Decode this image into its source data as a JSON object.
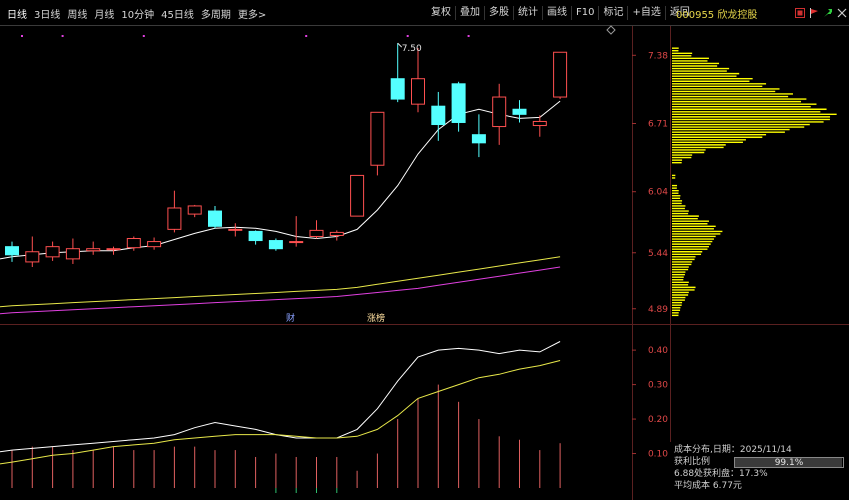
{
  "toolbar": {
    "periods": [
      "日线",
      "3日线",
      "周线",
      "月线",
      "10分钟",
      "45日线",
      "多周期",
      "更多>"
    ],
    "actions": [
      "复权",
      "叠加",
      "多股",
      "统计",
      "画线",
      "F10",
      "标记",
      "+自选",
      "返回"
    ]
  },
  "stock": {
    "code": "000955",
    "name": "欣龙控股"
  },
  "price_axis": {
    "ticks": [
      "7.38",
      "6.71",
      "6.04",
      "5.44",
      "4.89"
    ]
  },
  "indicator_axis": {
    "ticks": [
      "0.40",
      "0.30",
      "0.20",
      "0.10"
    ]
  },
  "markers": {
    "max_price": "7.50",
    "finance": "财",
    "dragon_tiger": "涨榜"
  },
  "chip_panel": {
    "title": "成本分布,日期：2025/11/14",
    "profit_ratio_label": "获利比例",
    "profit_ratio": "99.1%",
    "profit_ratio_fraction": 0.991,
    "profit_chips": "6.88处获利盘：17.3%",
    "avg_cost_label": "平均成本",
    "avg_cost": "6.77元"
  },
  "colors": {
    "up": "#ff5050",
    "down": "#54ffff",
    "ma_short": "#ffffff",
    "ma_mid": "#e8e84a",
    "ma_long": "#e040e0",
    "chip": "#ffff00"
  },
  "chart_data": {
    "type": "candlestick",
    "y_range": [
      4.75,
      7.55
    ],
    "candles": [
      {
        "o": 5.5,
        "c": 5.42,
        "h": 5.55,
        "l": 5.35
      },
      {
        "o": 5.35,
        "c": 5.45,
        "h": 5.6,
        "l": 5.3
      },
      {
        "o": 5.4,
        "c": 5.5,
        "h": 5.55,
        "l": 5.36
      },
      {
        "o": 5.38,
        "c": 5.48,
        "h": 5.58,
        "l": 5.33
      },
      {
        "o": 5.46,
        "c": 5.48,
        "h": 5.55,
        "l": 5.42
      },
      {
        "o": 5.47,
        "c": 5.48,
        "h": 5.5,
        "l": 5.42
      },
      {
        "o": 5.49,
        "c": 5.58,
        "h": 5.6,
        "l": 5.46
      },
      {
        "o": 5.5,
        "c": 5.55,
        "h": 5.59,
        "l": 5.47
      },
      {
        "o": 5.67,
        "c": 5.88,
        "h": 6.05,
        "l": 5.64
      },
      {
        "o": 5.82,
        "c": 5.9,
        "h": 5.91,
        "l": 5.79
      },
      {
        "o": 5.85,
        "c": 5.7,
        "h": 5.9,
        "l": 5.68
      },
      {
        "o": 5.67,
        "c": 5.67,
        "h": 5.73,
        "l": 5.6
      },
      {
        "o": 5.65,
        "c": 5.56,
        "h": 5.66,
        "l": 5.52
      },
      {
        "o": 5.56,
        "c": 5.48,
        "h": 5.58,
        "l": 5.46
      },
      {
        "o": 5.55,
        "c": 5.55,
        "h": 5.8,
        "l": 5.5
      },
      {
        "o": 5.6,
        "c": 5.66,
        "h": 5.76,
        "l": 5.58
      },
      {
        "o": 5.61,
        "c": 5.64,
        "h": 5.66,
        "l": 5.56
      },
      {
        "o": 5.8,
        "c": 6.2,
        "h": 6.2,
        "l": 5.8
      },
      {
        "o": 6.3,
        "c": 6.82,
        "h": 6.82,
        "l": 6.2
      },
      {
        "o": 7.15,
        "c": 6.95,
        "h": 7.5,
        "l": 6.92
      },
      {
        "o": 6.9,
        "c": 7.15,
        "h": 7.45,
        "l": 6.82
      },
      {
        "o": 6.88,
        "c": 6.7,
        "h": 7.02,
        "l": 6.54
      },
      {
        "o": 7.1,
        "c": 6.72,
        "h": 7.12,
        "l": 6.63
      },
      {
        "o": 6.6,
        "c": 6.52,
        "h": 6.8,
        "l": 6.38
      },
      {
        "o": 6.68,
        "c": 6.97,
        "h": 7.1,
        "l": 6.5
      },
      {
        "o": 6.85,
        "c": 6.8,
        "h": 6.94,
        "l": 6.72
      },
      {
        "o": 6.69,
        "c": 6.73,
        "h": 6.79,
        "l": 6.58
      },
      {
        "o": 6.97,
        "c": 7.41,
        "h": 7.41,
        "l": 6.95
      }
    ],
    "ma_short": [
      5.4,
      5.42,
      5.44,
      5.45,
      5.46,
      5.46,
      5.49,
      5.51,
      5.57,
      5.63,
      5.68,
      5.69,
      5.68,
      5.65,
      5.6,
      5.58,
      5.6,
      5.67,
      5.86,
      6.1,
      6.41,
      6.65,
      6.8,
      6.85,
      6.8,
      6.76,
      6.77,
      6.93
    ],
    "ma_mid": [
      4.92,
      4.93,
      4.94,
      4.95,
      4.96,
      4.97,
      4.98,
      4.99,
      5.0,
      5.01,
      5.02,
      5.03,
      5.04,
      5.05,
      5.06,
      5.07,
      5.08,
      5.1,
      5.13,
      5.16,
      5.19,
      5.22,
      5.25,
      5.28,
      5.31,
      5.34,
      5.37,
      5.4
    ],
    "ma_long": [
      4.85,
      4.86,
      4.87,
      4.88,
      4.89,
      4.9,
      4.91,
      4.92,
      4.93,
      4.94,
      4.95,
      4.96,
      4.97,
      4.98,
      4.99,
      5.0,
      5.01,
      5.03,
      5.05,
      5.07,
      5.09,
      5.12,
      5.15,
      5.18,
      5.21,
      5.24,
      5.27,
      5.3
    ],
    "indicator": {
      "y_range": [
        0,
        0.47
      ],
      "bars": [
        0.11,
        0.12,
        0.12,
        0.11,
        0.11,
        0.12,
        0.11,
        0.11,
        0.12,
        0.12,
        0.11,
        0.11,
        0.09,
        0.1,
        0.09,
        0.09,
        0.09,
        0.05,
        0.1,
        0.2,
        0.26,
        0.3,
        0.25,
        0.2,
        0.15,
        0.14,
        0.11,
        0.13
      ],
      "line_white": [
        0.11,
        0.115,
        0.12,
        0.125,
        0.13,
        0.135,
        0.14,
        0.145,
        0.155,
        0.175,
        0.19,
        0.18,
        0.17,
        0.155,
        0.145,
        0.145,
        0.145,
        0.17,
        0.23,
        0.31,
        0.38,
        0.4,
        0.405,
        0.4,
        0.39,
        0.4,
        0.395,
        0.425
      ],
      "line_yellow": [
        0.075,
        0.085,
        0.095,
        0.1,
        0.11,
        0.12,
        0.125,
        0.13,
        0.14,
        0.145,
        0.15,
        0.155,
        0.155,
        0.155,
        0.15,
        0.145,
        0.145,
        0.15,
        0.17,
        0.21,
        0.26,
        0.28,
        0.3,
        0.32,
        0.33,
        0.345,
        0.355,
        0.37
      ]
    },
    "chip_distribution": [
      {
        "p": 7.45,
        "w": 0.04
      },
      {
        "p": 7.4,
        "w": 0.12
      },
      {
        "p": 7.35,
        "w": 0.22
      },
      {
        "p": 7.3,
        "w": 0.28
      },
      {
        "p": 7.25,
        "w": 0.34
      },
      {
        "p": 7.2,
        "w": 0.4
      },
      {
        "p": 7.15,
        "w": 0.48
      },
      {
        "p": 7.1,
        "w": 0.56
      },
      {
        "p": 7.05,
        "w": 0.64
      },
      {
        "p": 7.0,
        "w": 0.72
      },
      {
        "p": 6.95,
        "w": 0.8
      },
      {
        "p": 6.9,
        "w": 0.86
      },
      {
        "p": 6.85,
        "w": 0.92
      },
      {
        "p": 6.8,
        "w": 0.98
      },
      {
        "p": 6.75,
        "w": 0.94
      },
      {
        "p": 6.7,
        "w": 0.82
      },
      {
        "p": 6.65,
        "w": 0.7
      },
      {
        "p": 6.6,
        "w": 0.56
      },
      {
        "p": 6.55,
        "w": 0.44
      },
      {
        "p": 6.5,
        "w": 0.32
      },
      {
        "p": 6.45,
        "w": 0.2
      },
      {
        "p": 6.4,
        "w": 0.12
      },
      {
        "p": 6.35,
        "w": 0.06
      },
      {
        "p": 6.2,
        "w": 0.02
      },
      {
        "p": 6.1,
        "w": 0.03
      },
      {
        "p": 6.05,
        "w": 0.04
      },
      {
        "p": 6.0,
        "w": 0.05
      },
      {
        "p": 5.95,
        "w": 0.06
      },
      {
        "p": 5.9,
        "w": 0.08
      },
      {
        "p": 5.85,
        "w": 0.1
      },
      {
        "p": 5.8,
        "w": 0.16
      },
      {
        "p": 5.75,
        "w": 0.22
      },
      {
        "p": 5.7,
        "w": 0.26
      },
      {
        "p": 5.65,
        "w": 0.3
      },
      {
        "p": 5.6,
        "w": 0.26
      },
      {
        "p": 5.55,
        "w": 0.24
      },
      {
        "p": 5.5,
        "w": 0.22
      },
      {
        "p": 5.45,
        "w": 0.18
      },
      {
        "p": 5.4,
        "w": 0.14
      },
      {
        "p": 5.35,
        "w": 0.12
      },
      {
        "p": 5.3,
        "w": 0.1
      },
      {
        "p": 5.25,
        "w": 0.08
      },
      {
        "p": 5.2,
        "w": 0.07
      },
      {
        "p": 5.15,
        "w": 0.1
      },
      {
        "p": 5.1,
        "w": 0.14
      },
      {
        "p": 5.05,
        "w": 0.1
      },
      {
        "p": 5.0,
        "w": 0.08
      },
      {
        "p": 4.95,
        "w": 0.06
      },
      {
        "p": 4.9,
        "w": 0.05
      },
      {
        "p": 4.85,
        "w": 0.04
      }
    ]
  }
}
